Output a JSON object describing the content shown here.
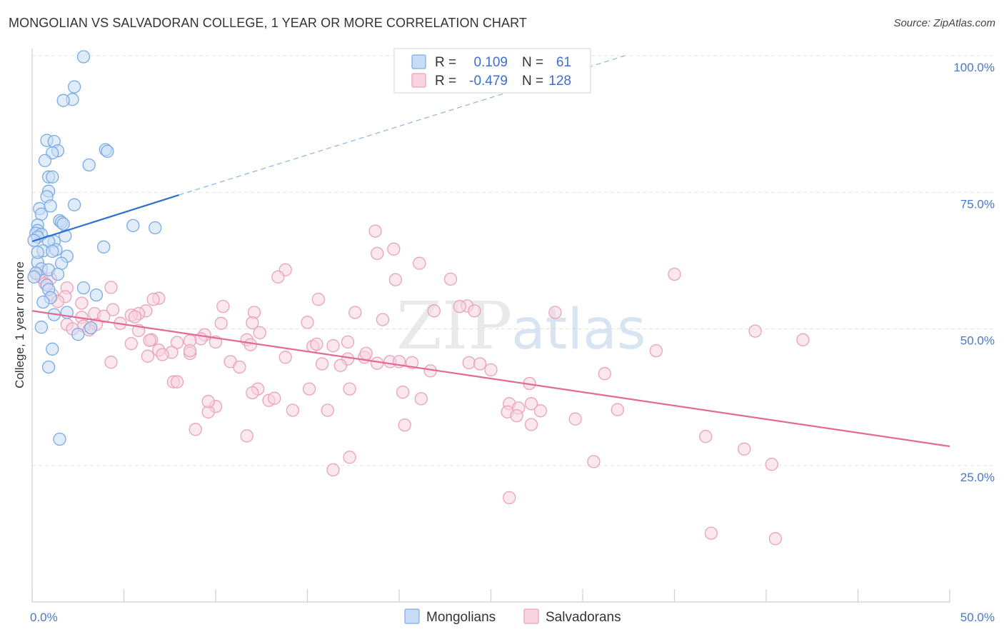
{
  "title": "MONGOLIAN VS SALVADORAN COLLEGE, 1 YEAR OR MORE CORRELATION CHART",
  "source": "Source: ZipAtlas.com",
  "watermark": {
    "zip": "ZIP",
    "atlas": "atlas"
  },
  "chart_data": {
    "type": "scatter",
    "title": "MONGOLIAN VS SALVADORAN COLLEGE, 1 YEAR OR MORE CORRELATION CHART",
    "xlabel": "",
    "ylabel": "College, 1 year or more",
    "xlim": [
      0,
      50
    ],
    "ylim": [
      0,
      100
    ],
    "x_ticks": [
      {
        "value": 0,
        "label": "0.0%"
      },
      {
        "value": 50,
        "label": "50.0%"
      }
    ],
    "y_ticks": [
      {
        "value": 25,
        "label": "25.0%"
      },
      {
        "value": 50,
        "label": "50.0%"
      },
      {
        "value": 75,
        "label": "75.0%"
      },
      {
        "value": 100,
        "label": "100.0%"
      }
    ],
    "grid": true,
    "legend": [
      {
        "name": "Mongolians",
        "r_label": "R =",
        "r_value": "0.109",
        "n_label": "N =",
        "n_value": "61",
        "color": "#7aaae6",
        "fill": "#c9dcf5"
      },
      {
        "name": "Salvadorans",
        "r_label": "R =",
        "r_value": "-0.479",
        "n_label": "N =",
        "n_value": "128",
        "color": "#eba1bb",
        "fill": "#f8d3e0"
      }
    ],
    "series": [
      {
        "name": "Mongolians",
        "color": "#7aaae6",
        "trend": {
          "x0": 0,
          "y0": 66.0,
          "x1": 8.0,
          "y1": 74.5,
          "x_ext_end": 32.3,
          "y_ext_end": 100.0,
          "color": "#2f6fd0"
        },
        "points": [
          [
            2.8,
            99.8
          ],
          [
            2.3,
            94.3
          ],
          [
            2.2,
            92.0
          ],
          [
            1.7,
            91.8
          ],
          [
            4.0,
            82.8
          ],
          [
            4.1,
            82.5
          ],
          [
            0.8,
            84.5
          ],
          [
            1.2,
            84.3
          ],
          [
            1.4,
            82.6
          ],
          [
            1.1,
            82.2
          ],
          [
            0.7,
            80.8
          ],
          [
            3.1,
            80.0
          ],
          [
            0.9,
            77.8
          ],
          [
            1.1,
            77.8
          ],
          [
            0.9,
            75.2
          ],
          [
            0.8,
            74.2
          ],
          [
            0.4,
            72.0
          ],
          [
            1.0,
            72.5
          ],
          [
            2.3,
            72.7
          ],
          [
            0.5,
            71.0
          ],
          [
            5.5,
            68.9
          ],
          [
            6.7,
            68.5
          ],
          [
            1.5,
            69.8
          ],
          [
            1.6,
            69.5
          ],
          [
            1.7,
            69.2
          ],
          [
            0.3,
            69.0
          ],
          [
            0.3,
            68.0
          ],
          [
            0.2,
            67.5
          ],
          [
            0.5,
            67.3
          ],
          [
            0.3,
            66.8
          ],
          [
            0.1,
            66.2
          ],
          [
            1.2,
            66.0
          ],
          [
            1.8,
            67.0
          ],
          [
            0.9,
            66.0
          ],
          [
            1.3,
            64.5
          ],
          [
            0.6,
            64.3
          ],
          [
            1.1,
            64.2
          ],
          [
            3.9,
            65.0
          ],
          [
            1.9,
            63.3
          ],
          [
            1.6,
            62.0
          ],
          [
            0.3,
            62.2
          ],
          [
            0.5,
            61.0
          ],
          [
            0.9,
            60.8
          ],
          [
            0.2,
            60.2
          ],
          [
            1.4,
            60.0
          ],
          [
            0.8,
            58.0
          ],
          [
            2.8,
            57.5
          ],
          [
            0.9,
            57.2
          ],
          [
            3.5,
            56.2
          ],
          [
            1.0,
            55.7
          ],
          [
            0.6,
            54.9
          ],
          [
            1.9,
            53.0
          ],
          [
            1.2,
            52.6
          ],
          [
            3.2,
            50.2
          ],
          [
            0.5,
            50.3
          ],
          [
            2.5,
            49.0
          ],
          [
            1.1,
            46.3
          ],
          [
            0.9,
            43.0
          ],
          [
            1.5,
            29.8
          ],
          [
            0.1,
            59.5
          ],
          [
            0.3,
            64.0
          ]
        ]
      },
      {
        "name": "Salvadorans",
        "color": "#eba1bb",
        "trend": {
          "x0": 0,
          "y0": 53.3,
          "x1": 50.0,
          "y1": 28.5,
          "color": "#e46a96"
        },
        "points": [
          [
            18.7,
            67.9
          ],
          [
            19.7,
            64.6
          ],
          [
            18.8,
            63.8
          ],
          [
            21.1,
            62.0
          ],
          [
            13.8,
            60.8
          ],
          [
            13.4,
            59.5
          ],
          [
            19.8,
            59.0
          ],
          [
            22.8,
            59.1
          ],
          [
            35.0,
            60.0
          ],
          [
            0.3,
            60.0
          ],
          [
            0.5,
            59.4
          ],
          [
            1.0,
            59.2
          ],
          [
            0.7,
            58.3
          ],
          [
            1.9,
            57.5
          ],
          [
            4.3,
            57.6
          ],
          [
            1.1,
            56.2
          ],
          [
            1.8,
            55.9
          ],
          [
            6.9,
            55.6
          ],
          [
            6.6,
            55.4
          ],
          [
            15.6,
            55.4
          ],
          [
            1.4,
            55.0
          ],
          [
            2.7,
            54.7
          ],
          [
            10.4,
            54.1
          ],
          [
            23.7,
            54.2
          ],
          [
            23.3,
            54.1
          ],
          [
            24.1,
            53.3
          ],
          [
            28.5,
            53.0
          ],
          [
            21.9,
            53.3
          ],
          [
            17.6,
            53.0
          ],
          [
            12.1,
            53.0
          ],
          [
            6.2,
            53.3
          ],
          [
            4.4,
            53.5
          ],
          [
            5.8,
            52.8
          ],
          [
            3.4,
            52.8
          ],
          [
            5.4,
            52.5
          ],
          [
            5.6,
            52.2
          ],
          [
            3.9,
            52.3
          ],
          [
            2.7,
            52.1
          ],
          [
            19.1,
            51.7
          ],
          [
            12.0,
            51.1
          ],
          [
            15.0,
            51.2
          ],
          [
            10.3,
            51.0
          ],
          [
            1.9,
            50.8
          ],
          [
            2.8,
            50.5
          ],
          [
            3.5,
            50.8
          ],
          [
            4.8,
            51.0
          ],
          [
            2.2,
            50.0
          ],
          [
            3.1,
            49.8
          ],
          [
            5.8,
            49.7
          ],
          [
            12.4,
            49.3
          ],
          [
            9.4,
            48.9
          ],
          [
            11.7,
            48.0
          ],
          [
            6.5,
            48.0
          ],
          [
            6.4,
            47.9
          ],
          [
            9.2,
            48.2
          ],
          [
            8.6,
            47.8
          ],
          [
            10.0,
            47.6
          ],
          [
            5.4,
            47.3
          ],
          [
            7.9,
            47.5
          ],
          [
            11.9,
            47.1
          ],
          [
            17.2,
            47.6
          ],
          [
            16.4,
            46.9
          ],
          [
            15.3,
            46.8
          ],
          [
            34.0,
            46.0
          ],
          [
            39.4,
            49.6
          ],
          [
            42.0,
            48.0
          ],
          [
            7.6,
            45.7
          ],
          [
            8.6,
            45.5
          ],
          [
            8.6,
            46.0
          ],
          [
            6.9,
            46.1
          ],
          [
            7.1,
            45.3
          ],
          [
            6.3,
            45.0
          ],
          [
            13.8,
            44.8
          ],
          [
            18.1,
            44.8
          ],
          [
            17.2,
            44.5
          ],
          [
            19.5,
            44.0
          ],
          [
            20.0,
            44.0
          ],
          [
            18.8,
            43.7
          ],
          [
            15.8,
            43.6
          ],
          [
            16.8,
            43.3
          ],
          [
            23.8,
            43.8
          ],
          [
            24.4,
            43.6
          ],
          [
            25.0,
            42.5
          ],
          [
            10.8,
            44.0
          ],
          [
            11.3,
            43.0
          ],
          [
            4.3,
            43.9
          ],
          [
            20.7,
            43.8
          ],
          [
            21.7,
            42.3
          ],
          [
            31.2,
            41.8
          ],
          [
            18.2,
            45.5
          ],
          [
            15.5,
            47.2
          ],
          [
            7.7,
            40.3
          ],
          [
            7.9,
            40.3
          ],
          [
            27.1,
            40.0
          ],
          [
            12.3,
            39.0
          ],
          [
            12.0,
            38.3
          ],
          [
            15.1,
            39.0
          ],
          [
            17.3,
            39.0
          ],
          [
            20.2,
            38.4
          ],
          [
            21.2,
            37.2
          ],
          [
            12.9,
            36.9
          ],
          [
            13.2,
            37.3
          ],
          [
            10.0,
            35.8
          ],
          [
            9.6,
            34.8
          ],
          [
            9.6,
            36.7
          ],
          [
            14.2,
            35.1
          ],
          [
            16.1,
            35.1
          ],
          [
            26.0,
            36.3
          ],
          [
            25.9,
            34.8
          ],
          [
            26.5,
            35.5
          ],
          [
            27.2,
            36.3
          ],
          [
            27.7,
            35.0
          ],
          [
            26.4,
            34.1
          ],
          [
            29.6,
            33.5
          ],
          [
            31.9,
            35.2
          ],
          [
            27.2,
            32.5
          ],
          [
            20.3,
            32.4
          ],
          [
            8.9,
            31.6
          ],
          [
            11.7,
            30.4
          ],
          [
            36.7,
            30.3
          ],
          [
            38.8,
            28.0
          ],
          [
            30.6,
            25.7
          ],
          [
            40.3,
            25.2
          ],
          [
            17.3,
            26.5
          ],
          [
            16.4,
            24.2
          ],
          [
            26.0,
            19.1
          ],
          [
            37.0,
            12.6
          ],
          [
            40.5,
            11.6
          ]
        ]
      }
    ]
  }
}
